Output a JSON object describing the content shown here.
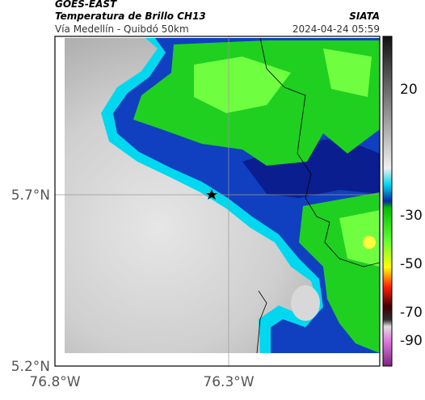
{
  "header": {
    "title": "GOES-EAST",
    "subtitle": "Temperatura de Brillo CH13",
    "source": "SIATA",
    "region": "Vía Medellín - Quibdó 50km",
    "timestamp": "2024-04-24 05:59"
  },
  "map": {
    "lat_labels": [
      "5.7°N",
      "5.2°N"
    ],
    "lon_labels": [
      "76.8°W",
      "76.3°W"
    ]
  },
  "colorbar": {
    "ticks": [
      20,
      -30,
      -50,
      -70,
      -90
    ]
  }
}
